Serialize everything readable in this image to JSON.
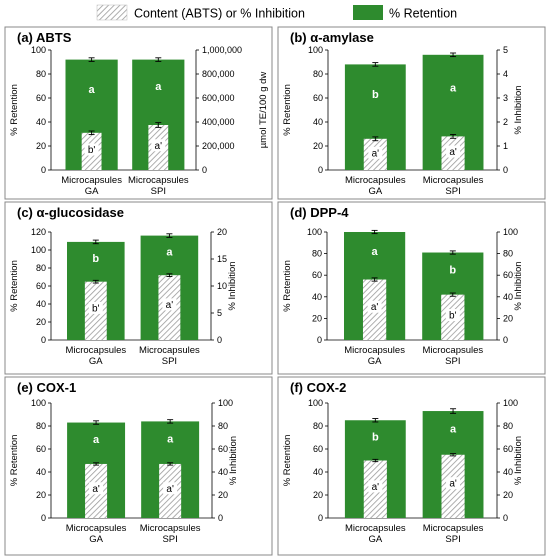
{
  "legend": {
    "hatch_label": "Content (ABTS) or % Inhibition",
    "solid_label": "% Retention"
  },
  "colors": {
    "retention": "#2e8b2e",
    "hatch_fg": "#9a9a9a",
    "hatch_bg": "#ffffff",
    "frame": "#888888"
  },
  "chart_data": [
    {
      "type": "bar",
      "title": "(a) ABTS",
      "categories": [
        "Microcapsules\nGA",
        "Microcapsules\nSPI"
      ],
      "ylabel_left": "% Retention",
      "ylabel_right": "µmol TE/100 g dw",
      "ylim_left": [
        0,
        100
      ],
      "ylim_right": [
        0,
        1000000
      ],
      "yticks_left": [
        "0",
        "20",
        "40",
        "60",
        "80",
        "100"
      ],
      "yticks_right": [
        "0",
        "200,000",
        "400,000",
        "600,000",
        "800,000",
        "1,000,000"
      ],
      "series": [
        {
          "name": "% Retention",
          "axis": "left",
          "values": [
            92,
            92
          ],
          "errors": [
            1.5,
            1.5
          ],
          "letters": [
            "a",
            "a"
          ]
        },
        {
          "name": "Content (ABTS) or % Inhibition",
          "axis": "right",
          "values": [
            310000,
            375000
          ],
          "errors": [
            15000,
            20000
          ],
          "letters": [
            "b'",
            "a'"
          ]
        }
      ]
    },
    {
      "type": "bar",
      "title": "(b) α-amylase",
      "categories": [
        "Microcapsules\nGA",
        "Microcapsules\nSPI"
      ],
      "ylabel_left": "% Retention",
      "ylabel_right": "% Inhibition",
      "ylim_left": [
        0,
        100
      ],
      "ylim_right": [
        0,
        5
      ],
      "yticks_left": [
        "0",
        "20",
        "40",
        "60",
        "80",
        "100"
      ],
      "yticks_right": [
        "0",
        "1",
        "2",
        "3",
        "4",
        "5"
      ],
      "series": [
        {
          "name": "% Retention",
          "axis": "left",
          "values": [
            88,
            96
          ],
          "errors": [
            1.5,
            1.5
          ],
          "letters": [
            "b",
            "a"
          ]
        },
        {
          "name": "Content (ABTS) or % Inhibition",
          "axis": "right",
          "values": [
            1.3,
            1.4
          ],
          "errors": [
            0.08,
            0.08
          ],
          "letters": [
            "a'",
            "a'"
          ]
        }
      ]
    },
    {
      "type": "bar",
      "title": "(c) α-glucosidase",
      "categories": [
        "Microcapsules\nGA",
        "Microcapsules\nSPI"
      ],
      "ylabel_left": "% Retention",
      "ylabel_right": "% Inhibition",
      "ylim_left": [
        0,
        120
      ],
      "ylim_right": [
        0,
        20
      ],
      "yticks_left": [
        "0",
        "20",
        "40",
        "60",
        "80",
        "100",
        "120"
      ],
      "yticks_right": [
        "0",
        "5",
        "10",
        "15",
        "20"
      ],
      "series": [
        {
          "name": "% Retention",
          "axis": "left",
          "values": [
            109,
            116
          ],
          "errors": [
            2,
            2
          ],
          "letters": [
            "b",
            "a"
          ]
        },
        {
          "name": "Content (ABTS) or % Inhibition",
          "axis": "right",
          "values": [
            10.8,
            12.0
          ],
          "errors": [
            0.25,
            0.25
          ],
          "letters": [
            "b'",
            "a'"
          ]
        }
      ]
    },
    {
      "type": "bar",
      "title": "(d) DPP-4",
      "categories": [
        "Microcapsules\nGA",
        "Microcapsules\nSPI"
      ],
      "ylabel_left": "% Retention",
      "ylabel_right": "% Inhibition",
      "ylim_left": [
        0,
        100
      ],
      "ylim_right": [
        0,
        100
      ],
      "yticks_left": [
        "0",
        "20",
        "40",
        "60",
        "80",
        "100"
      ],
      "yticks_right": [
        "0",
        "20",
        "40",
        "60",
        "80",
        "100"
      ],
      "series": [
        {
          "name": "% Retention",
          "axis": "left",
          "values": [
            100,
            81
          ],
          "errors": [
            1.5,
            1.5
          ],
          "letters": [
            "a",
            "b"
          ]
        },
        {
          "name": "Content (ABTS) or % Inhibition",
          "axis": "right",
          "values": [
            56,
            42
          ],
          "errors": [
            1.5,
            1.5
          ],
          "letters": [
            "a'",
            "b'"
          ]
        }
      ]
    },
    {
      "type": "bar",
      "title": "(e) COX-1",
      "categories": [
        "Microcapsules\nGA",
        "Microcapsules\nSPI"
      ],
      "ylabel_left": "% Retention",
      "ylabel_right": "% Inhibition",
      "ylim_left": [
        0,
        100
      ],
      "ylim_right": [
        0,
        100
      ],
      "yticks_left": [
        "0",
        "20",
        "40",
        "60",
        "80",
        "100"
      ],
      "yticks_right": [
        "0",
        "20",
        "40",
        "60",
        "80",
        "100"
      ],
      "series": [
        {
          "name": "% Retention",
          "axis": "left",
          "values": [
            83,
            84
          ],
          "errors": [
            1.5,
            1.5
          ],
          "letters": [
            "a",
            "a"
          ]
        },
        {
          "name": "Content (ABTS) or % Inhibition",
          "axis": "right",
          "values": [
            47,
            47
          ],
          "errors": [
            1,
            1
          ],
          "letters": [
            "a'",
            "a'"
          ]
        }
      ]
    },
    {
      "type": "bar",
      "title": "(f) COX-2",
      "categories": [
        "Microcapsules\nGA",
        "Microcapsules\nSPI"
      ],
      "ylabel_left": "% Retention",
      "ylabel_right": "% Inhibition",
      "ylim_left": [
        0,
        100
      ],
      "ylim_right": [
        0,
        100
      ],
      "yticks_left": [
        "0",
        "20",
        "40",
        "60",
        "80",
        "100"
      ],
      "yticks_right": [
        "0",
        "20",
        "40",
        "60",
        "80",
        "100"
      ],
      "series": [
        {
          "name": "% Retention",
          "axis": "left",
          "values": [
            85,
            93
          ],
          "errors": [
            1.5,
            2
          ],
          "letters": [
            "b",
            "a"
          ]
        },
        {
          "name": "Content (ABTS) or % Inhibition",
          "axis": "right",
          "values": [
            50,
            55
          ],
          "errors": [
            1,
            1
          ],
          "letters": [
            "a'",
            "a'"
          ]
        }
      ]
    }
  ]
}
